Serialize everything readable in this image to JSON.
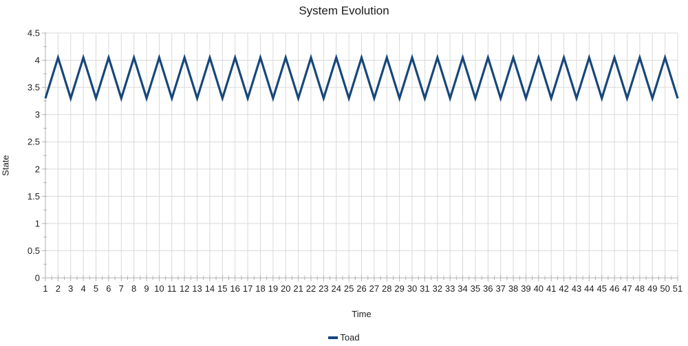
{
  "chart_data": {
    "type": "line",
    "title": "System Evolution",
    "xlabel": "Time",
    "ylabel": "State",
    "legend_position": "bottom",
    "grid": "both-major",
    "ylim": [
      0,
      4.5
    ],
    "ytick_step": 0.5,
    "y_minor_step": 0.25,
    "x_minor_step": 0.5,
    "y_tick_labels": [
      "0",
      "0.5",
      "1",
      "1.5",
      "2",
      "2.5",
      "3",
      "3.5",
      "4",
      "4.5"
    ],
    "x": [
      1,
      2,
      3,
      4,
      5,
      6,
      7,
      8,
      9,
      10,
      11,
      12,
      13,
      14,
      15,
      16,
      17,
      18,
      19,
      20,
      21,
      22,
      23,
      24,
      25,
      26,
      27,
      28,
      29,
      30,
      31,
      32,
      33,
      34,
      35,
      36,
      37,
      38,
      39,
      40,
      41,
      42,
      43,
      44,
      45,
      46,
      47,
      48,
      49,
      50,
      51
    ],
    "series": [
      {
        "name": "Toad",
        "color": "#17477a",
        "values": [
          3.3,
          4.05,
          3.3,
          4.05,
          3.3,
          4.05,
          3.3,
          4.05,
          3.3,
          4.05,
          3.3,
          4.05,
          3.3,
          4.05,
          3.3,
          4.05,
          3.3,
          4.05,
          3.3,
          4.05,
          3.3,
          4.05,
          3.3,
          4.05,
          3.3,
          4.05,
          3.3,
          4.05,
          3.3,
          4.05,
          3.3,
          4.05,
          3.3,
          4.05,
          3.3,
          4.05,
          3.3,
          4.05,
          3.3,
          4.05,
          3.3,
          4.05,
          3.3,
          4.05,
          3.3,
          4.05,
          3.3,
          4.05,
          3.3,
          4.05,
          3.3
        ]
      }
    ],
    "colors": {
      "grid": "#d9d9d9",
      "axis": "#b2b2b2",
      "text": "#1e1e1e",
      "background": "#ffffff"
    }
  }
}
